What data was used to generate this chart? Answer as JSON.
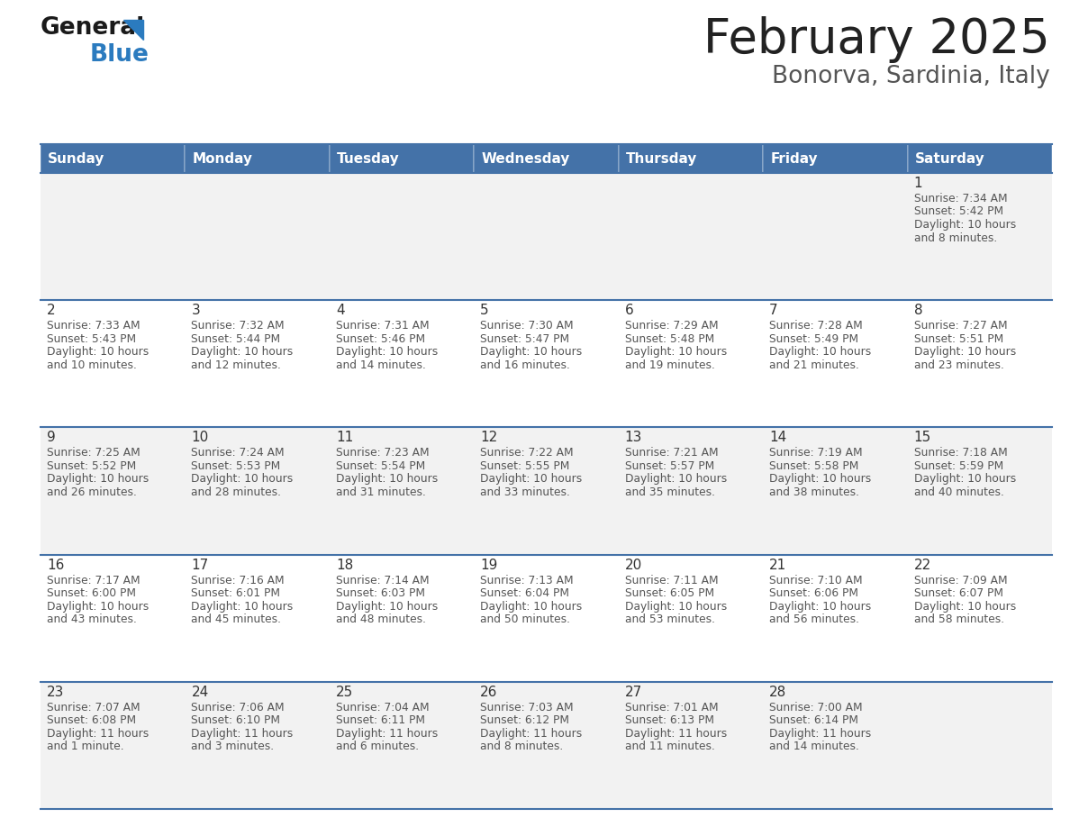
{
  "title": "February 2025",
  "subtitle": "Bonorva, Sardinia, Italy",
  "header_color": "#4472a8",
  "header_text_color": "#ffffff",
  "background_color": "#ffffff",
  "row0_color": "#f2f2f2",
  "row1_color": "#ffffff",
  "separator_color": "#4472a8",
  "days_of_week": [
    "Sunday",
    "Monday",
    "Tuesday",
    "Wednesday",
    "Thursday",
    "Friday",
    "Saturday"
  ],
  "title_color": "#222222",
  "subtitle_color": "#555555",
  "day_num_color": "#333333",
  "cell_text_color": "#555555",
  "weeks": [
    [
      {
        "day": null,
        "sunrise": null,
        "sunset": null,
        "daylight_line1": null,
        "daylight_line2": null
      },
      {
        "day": null,
        "sunrise": null,
        "sunset": null,
        "daylight_line1": null,
        "daylight_line2": null
      },
      {
        "day": null,
        "sunrise": null,
        "sunset": null,
        "daylight_line1": null,
        "daylight_line2": null
      },
      {
        "day": null,
        "sunrise": null,
        "sunset": null,
        "daylight_line1": null,
        "daylight_line2": null
      },
      {
        "day": null,
        "sunrise": null,
        "sunset": null,
        "daylight_line1": null,
        "daylight_line2": null
      },
      {
        "day": null,
        "sunrise": null,
        "sunset": null,
        "daylight_line1": null,
        "daylight_line2": null
      },
      {
        "day": "1",
        "sunrise": "Sunrise: 7:34 AM",
        "sunset": "Sunset: 5:42 PM",
        "daylight_line1": "Daylight: 10 hours",
        "daylight_line2": "and 8 minutes."
      }
    ],
    [
      {
        "day": "2",
        "sunrise": "Sunrise: 7:33 AM",
        "sunset": "Sunset: 5:43 PM",
        "daylight_line1": "Daylight: 10 hours",
        "daylight_line2": "and 10 minutes."
      },
      {
        "day": "3",
        "sunrise": "Sunrise: 7:32 AM",
        "sunset": "Sunset: 5:44 PM",
        "daylight_line1": "Daylight: 10 hours",
        "daylight_line2": "and 12 minutes."
      },
      {
        "day": "4",
        "sunrise": "Sunrise: 7:31 AM",
        "sunset": "Sunset: 5:46 PM",
        "daylight_line1": "Daylight: 10 hours",
        "daylight_line2": "and 14 minutes."
      },
      {
        "day": "5",
        "sunrise": "Sunrise: 7:30 AM",
        "sunset": "Sunset: 5:47 PM",
        "daylight_line1": "Daylight: 10 hours",
        "daylight_line2": "and 16 minutes."
      },
      {
        "day": "6",
        "sunrise": "Sunrise: 7:29 AM",
        "sunset": "Sunset: 5:48 PM",
        "daylight_line1": "Daylight: 10 hours",
        "daylight_line2": "and 19 minutes."
      },
      {
        "day": "7",
        "sunrise": "Sunrise: 7:28 AM",
        "sunset": "Sunset: 5:49 PM",
        "daylight_line1": "Daylight: 10 hours",
        "daylight_line2": "and 21 minutes."
      },
      {
        "day": "8",
        "sunrise": "Sunrise: 7:27 AM",
        "sunset": "Sunset: 5:51 PM",
        "daylight_line1": "Daylight: 10 hours",
        "daylight_line2": "and 23 minutes."
      }
    ],
    [
      {
        "day": "9",
        "sunrise": "Sunrise: 7:25 AM",
        "sunset": "Sunset: 5:52 PM",
        "daylight_line1": "Daylight: 10 hours",
        "daylight_line2": "and 26 minutes."
      },
      {
        "day": "10",
        "sunrise": "Sunrise: 7:24 AM",
        "sunset": "Sunset: 5:53 PM",
        "daylight_line1": "Daylight: 10 hours",
        "daylight_line2": "and 28 minutes."
      },
      {
        "day": "11",
        "sunrise": "Sunrise: 7:23 AM",
        "sunset": "Sunset: 5:54 PM",
        "daylight_line1": "Daylight: 10 hours",
        "daylight_line2": "and 31 minutes."
      },
      {
        "day": "12",
        "sunrise": "Sunrise: 7:22 AM",
        "sunset": "Sunset: 5:55 PM",
        "daylight_line1": "Daylight: 10 hours",
        "daylight_line2": "and 33 minutes."
      },
      {
        "day": "13",
        "sunrise": "Sunrise: 7:21 AM",
        "sunset": "Sunset: 5:57 PM",
        "daylight_line1": "Daylight: 10 hours",
        "daylight_line2": "and 35 minutes."
      },
      {
        "day": "14",
        "sunrise": "Sunrise: 7:19 AM",
        "sunset": "Sunset: 5:58 PM",
        "daylight_line1": "Daylight: 10 hours",
        "daylight_line2": "and 38 minutes."
      },
      {
        "day": "15",
        "sunrise": "Sunrise: 7:18 AM",
        "sunset": "Sunset: 5:59 PM",
        "daylight_line1": "Daylight: 10 hours",
        "daylight_line2": "and 40 minutes."
      }
    ],
    [
      {
        "day": "16",
        "sunrise": "Sunrise: 7:17 AM",
        "sunset": "Sunset: 6:00 PM",
        "daylight_line1": "Daylight: 10 hours",
        "daylight_line2": "and 43 minutes."
      },
      {
        "day": "17",
        "sunrise": "Sunrise: 7:16 AM",
        "sunset": "Sunset: 6:01 PM",
        "daylight_line1": "Daylight: 10 hours",
        "daylight_line2": "and 45 minutes."
      },
      {
        "day": "18",
        "sunrise": "Sunrise: 7:14 AM",
        "sunset": "Sunset: 6:03 PM",
        "daylight_line1": "Daylight: 10 hours",
        "daylight_line2": "and 48 minutes."
      },
      {
        "day": "19",
        "sunrise": "Sunrise: 7:13 AM",
        "sunset": "Sunset: 6:04 PM",
        "daylight_line1": "Daylight: 10 hours",
        "daylight_line2": "and 50 minutes."
      },
      {
        "day": "20",
        "sunrise": "Sunrise: 7:11 AM",
        "sunset": "Sunset: 6:05 PM",
        "daylight_line1": "Daylight: 10 hours",
        "daylight_line2": "and 53 minutes."
      },
      {
        "day": "21",
        "sunrise": "Sunrise: 7:10 AM",
        "sunset": "Sunset: 6:06 PM",
        "daylight_line1": "Daylight: 10 hours",
        "daylight_line2": "and 56 minutes."
      },
      {
        "day": "22",
        "sunrise": "Sunrise: 7:09 AM",
        "sunset": "Sunset: 6:07 PM",
        "daylight_line1": "Daylight: 10 hours",
        "daylight_line2": "and 58 minutes."
      }
    ],
    [
      {
        "day": "23",
        "sunrise": "Sunrise: 7:07 AM",
        "sunset": "Sunset: 6:08 PM",
        "daylight_line1": "Daylight: 11 hours",
        "daylight_line2": "and 1 minute."
      },
      {
        "day": "24",
        "sunrise": "Sunrise: 7:06 AM",
        "sunset": "Sunset: 6:10 PM",
        "daylight_line1": "Daylight: 11 hours",
        "daylight_line2": "and 3 minutes."
      },
      {
        "day": "25",
        "sunrise": "Sunrise: 7:04 AM",
        "sunset": "Sunset: 6:11 PM",
        "daylight_line1": "Daylight: 11 hours",
        "daylight_line2": "and 6 minutes."
      },
      {
        "day": "26",
        "sunrise": "Sunrise: 7:03 AM",
        "sunset": "Sunset: 6:12 PM",
        "daylight_line1": "Daylight: 11 hours",
        "daylight_line2": "and 8 minutes."
      },
      {
        "day": "27",
        "sunrise": "Sunrise: 7:01 AM",
        "sunset": "Sunset: 6:13 PM",
        "daylight_line1": "Daylight: 11 hours",
        "daylight_line2": "and 11 minutes."
      },
      {
        "day": "28",
        "sunrise": "Sunrise: 7:00 AM",
        "sunset": "Sunset: 6:14 PM",
        "daylight_line1": "Daylight: 11 hours",
        "daylight_line2": "and 14 minutes."
      },
      {
        "day": null,
        "sunrise": null,
        "sunset": null,
        "daylight_line1": null,
        "daylight_line2": null
      }
    ]
  ]
}
